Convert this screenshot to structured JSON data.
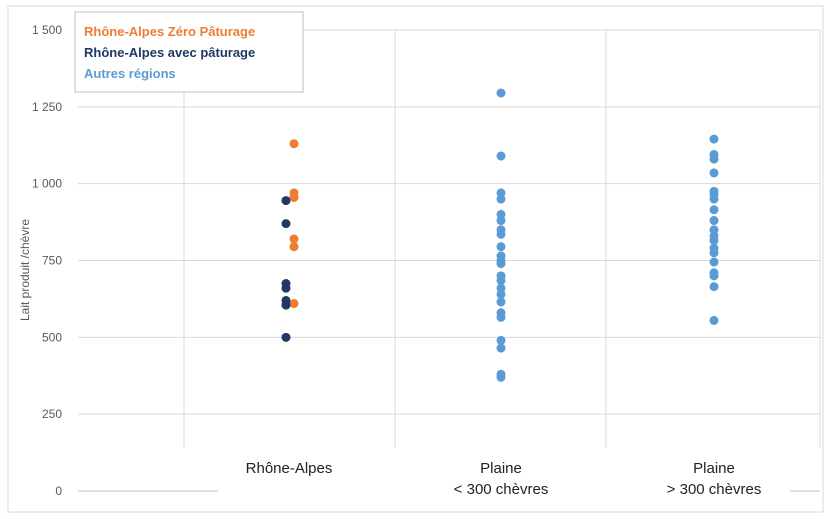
{
  "chart_data": {
    "type": "scatter",
    "ylabel": "Lait produit /chèvre",
    "ylim": [
      0,
      1500
    ],
    "yticks": [
      0,
      250,
      500,
      750,
      1000,
      1250,
      1500
    ],
    "ytick_labels": [
      "0",
      "250",
      "500",
      "750",
      "1 000",
      "1 250",
      "1 500"
    ],
    "categories": [
      {
        "lines": [
          "Rhône-Alpes"
        ]
      },
      {
        "lines": [
          "Plaine",
          "< 300 chèvres"
        ]
      },
      {
        "lines": [
          "Plaine",
          "> 300 chèvres"
        ]
      }
    ],
    "grid": true,
    "legend_position": "top-left",
    "series": [
      {
        "name": "Rhône-Alpes Zéro Pâturage",
        "color": "#ED7D31",
        "points": [
          {
            "cat": 0,
            "y": 1130
          },
          {
            "cat": 0,
            "y": 970
          },
          {
            "cat": 0,
            "y": 955
          },
          {
            "cat": 0,
            "y": 820
          },
          {
            "cat": 0,
            "y": 795
          },
          {
            "cat": 0,
            "y": 610
          }
        ]
      },
      {
        "name": "Rhône-Alpes avec pâturage",
        "color": "#1F3864",
        "points": [
          {
            "cat": 0,
            "y": 945
          },
          {
            "cat": 0,
            "y": 870
          },
          {
            "cat": 0,
            "y": 675
          },
          {
            "cat": 0,
            "y": 660
          },
          {
            "cat": 0,
            "y": 620
          },
          {
            "cat": 0,
            "y": 605
          },
          {
            "cat": 0,
            "y": 500
          }
        ]
      },
      {
        "name": "Autres régions",
        "color": "#5B9BD5",
        "points": [
          {
            "cat": 1,
            "y": 1295
          },
          {
            "cat": 1,
            "y": 1090
          },
          {
            "cat": 1,
            "y": 970
          },
          {
            "cat": 1,
            "y": 950
          },
          {
            "cat": 1,
            "y": 900
          },
          {
            "cat": 1,
            "y": 880
          },
          {
            "cat": 1,
            "y": 850
          },
          {
            "cat": 1,
            "y": 835
          },
          {
            "cat": 1,
            "y": 795
          },
          {
            "cat": 1,
            "y": 765
          },
          {
            "cat": 1,
            "y": 750
          },
          {
            "cat": 1,
            "y": 740
          },
          {
            "cat": 1,
            "y": 700
          },
          {
            "cat": 1,
            "y": 685
          },
          {
            "cat": 1,
            "y": 660
          },
          {
            "cat": 1,
            "y": 640
          },
          {
            "cat": 1,
            "y": 615
          },
          {
            "cat": 1,
            "y": 580
          },
          {
            "cat": 1,
            "y": 565
          },
          {
            "cat": 1,
            "y": 490
          },
          {
            "cat": 1,
            "y": 465
          },
          {
            "cat": 1,
            "y": 380
          },
          {
            "cat": 1,
            "y": 370
          },
          {
            "cat": 2,
            "y": 1145
          },
          {
            "cat": 2,
            "y": 1095
          },
          {
            "cat": 2,
            "y": 1080
          },
          {
            "cat": 2,
            "y": 1035
          },
          {
            "cat": 2,
            "y": 975
          },
          {
            "cat": 2,
            "y": 965
          },
          {
            "cat": 2,
            "y": 950
          },
          {
            "cat": 2,
            "y": 915
          },
          {
            "cat": 2,
            "y": 880
          },
          {
            "cat": 2,
            "y": 850
          },
          {
            "cat": 2,
            "y": 830
          },
          {
            "cat": 2,
            "y": 815
          },
          {
            "cat": 2,
            "y": 790
          },
          {
            "cat": 2,
            "y": 775
          },
          {
            "cat": 2,
            "y": 745
          },
          {
            "cat": 2,
            "y": 710
          },
          {
            "cat": 2,
            "y": 700
          },
          {
            "cat": 2,
            "y": 665
          },
          {
            "cat": 2,
            "y": 555
          }
        ]
      }
    ]
  }
}
